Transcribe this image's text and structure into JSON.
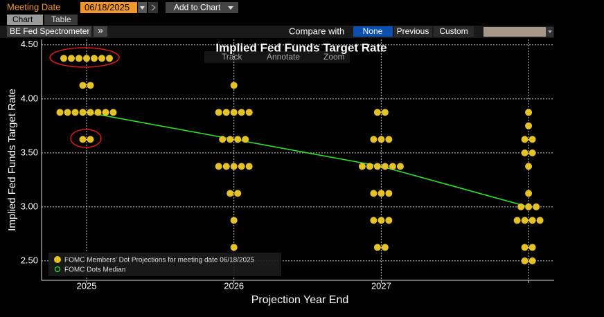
{
  "toolbar": {
    "meeting_date_label": "Meeting Date",
    "meeting_date": "06/18/2025",
    "add_button": "Add to Chart"
  },
  "tabs": [
    "Chart",
    "Table"
  ],
  "subtoolbar": {
    "view": "BE Fed Spectrometer",
    "more": "»",
    "compare_label": "Compare with",
    "compare_options": [
      "None",
      "Previous",
      "Custom"
    ]
  },
  "chart_tools": [
    "Track",
    "Annotate",
    "Zoom"
  ],
  "chart_data": {
    "type": "dot",
    "title": "Implied Fed Funds Target Rate",
    "ylabel": "Implied Fed Funds Target Rate",
    "xlabel": "Projection Year End",
    "categories": [
      "2025",
      "2026",
      "2027",
      null
    ],
    "ylim": [
      2.32,
      4.55
    ],
    "yticks": [
      {
        "value": 2.5,
        "label": "2.50"
      },
      {
        "value": 3.0,
        "label": "3.00"
      },
      {
        "value": 3.5,
        "label": "3.50"
      },
      {
        "value": 4.0,
        "label": "4.00"
      },
      {
        "value": 4.5,
        "label": "4.50"
      }
    ],
    "grid": true,
    "series": [
      {
        "name": "FOMC Members' Dot Projections for meeting date 06/18/2025",
        "color": "#e6c229",
        "values": [
          [
            4.375,
            4.375,
            4.375,
            4.375,
            4.375,
            4.375,
            4.375,
            4.125,
            4.125,
            3.875,
            3.875,
            3.875,
            3.875,
            3.875,
            3.875,
            3.875,
            3.875,
            3.625,
            3.625
          ],
          [
            4.125,
            3.875,
            3.875,
            3.875,
            3.875,
            3.875,
            3.625,
            3.625,
            3.625,
            3.625,
            3.375,
            3.375,
            3.375,
            3.375,
            3.375,
            3.125,
            3.125,
            2.875,
            2.625
          ],
          [
            3.875,
            3.875,
            3.625,
            3.625,
            3.625,
            3.375,
            3.375,
            3.375,
            3.375,
            3.375,
            3.375,
            3.125,
            3.125,
            3.125,
            2.875,
            2.875,
            2.875,
            2.625,
            2.625
          ],
          [
            3.875,
            3.75,
            3.625,
            3.625,
            3.5,
            3.5,
            3.375,
            3.125,
            3.0,
            3.0,
            3.0,
            2.875,
            2.875,
            2.875,
            2.875,
            2.625,
            2.625,
            2.5,
            2.5
          ]
        ]
      },
      {
        "name": "FOMC Dots Median",
        "color": "#2ee02e",
        "values": [
          3.875,
          3.625,
          3.375,
          3.0
        ]
      }
    ]
  }
}
